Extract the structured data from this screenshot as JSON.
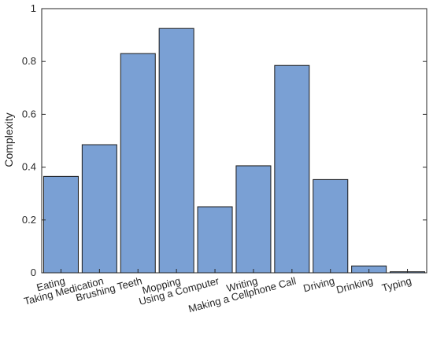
{
  "chart_data": {
    "type": "bar",
    "title": "",
    "xlabel": "",
    "ylabel": "Complexity",
    "categories": [
      "Eating",
      "Taking Medication",
      "Brushing Teeth",
      "Mopping",
      "Using a Computer",
      "Writing",
      "Making a Cellphone Call",
      "Driving",
      "Drinking",
      "Typing"
    ],
    "values": [
      0.365,
      0.485,
      0.83,
      0.925,
      0.25,
      0.405,
      0.785,
      0.353,
      0.026,
      0.004
    ],
    "ylim": [
      0,
      1
    ],
    "yticks": [
      0,
      0.2,
      0.4,
      0.6,
      0.8,
      1
    ],
    "ytick_labels": [
      "0",
      "0.2",
      "0.4",
      "0.6",
      "0.8",
      "1"
    ],
    "grid": false,
    "bar_color": "#7aa0d4",
    "bar_edge_color": "#1a1a1a"
  }
}
